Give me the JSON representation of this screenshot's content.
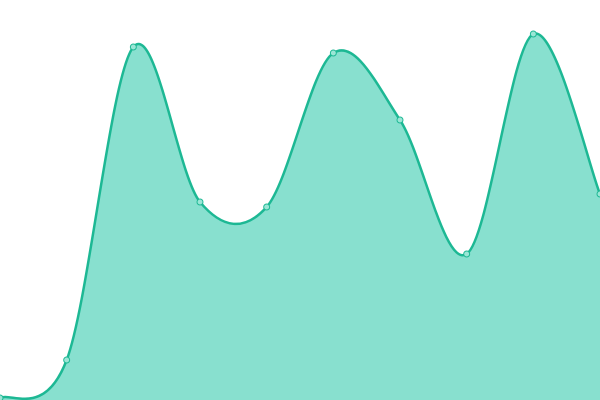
{
  "chart_data": {
    "type": "area",
    "categories": [
      null,
      null,
      null,
      null,
      null,
      null,
      null,
      null,
      null,
      null
    ],
    "values": [
      2,
      40,
      353,
      198,
      193,
      347,
      280,
      146,
      366,
      206
    ],
    "ylim": [
      0,
      400
    ],
    "color": "#1db894",
    "fill": "#88e0cf",
    "point_fill": "#9be6d6"
  }
}
